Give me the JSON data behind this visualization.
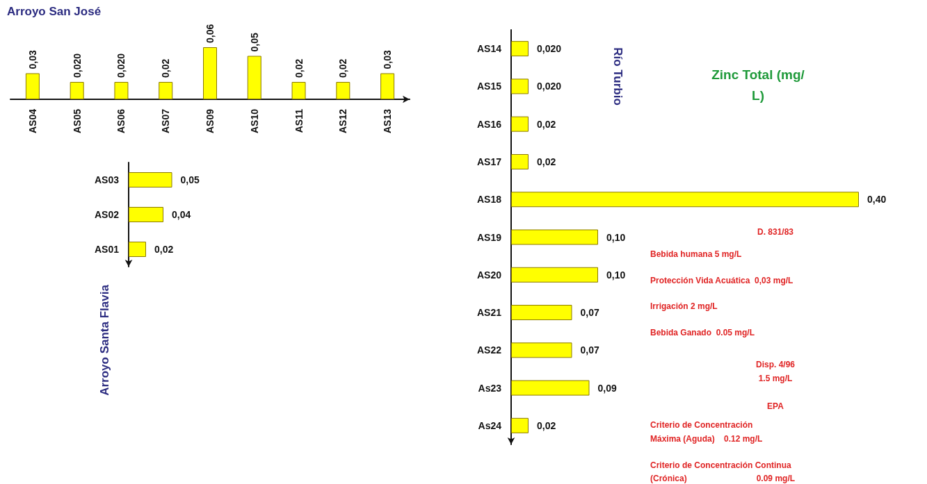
{
  "chart_data": [
    {
      "type": "bar",
      "title": "Arroyo San José",
      "categories": [
        "AS04",
        "AS05",
        "AS06",
        "AS07",
        "AS09",
        "AS10",
        "AS11",
        "AS12",
        "AS13"
      ],
      "values": [
        0.03,
        0.02,
        0.02,
        0.02,
        0.06,
        0.05,
        0.02,
        0.02,
        0.03
      ],
      "value_labels": [
        "0,03",
        "0,020",
        "0,020",
        "0,02",
        "0,06",
        "0,05",
        "0,02",
        "0,02",
        "0,03"
      ],
      "color": "#ffff00"
    },
    {
      "type": "bar",
      "orientation": "horizontal",
      "title": "Arroyo Santa Flavia",
      "categories": [
        "AS03",
        "AS02",
        "AS01"
      ],
      "values": [
        0.05,
        0.04,
        0.02
      ],
      "value_labels": [
        "0,05",
        "0,04",
        "0,02"
      ],
      "color": "#ffff00"
    },
    {
      "type": "bar",
      "orientation": "horizontal",
      "title": "Río Turbio",
      "subtitle": "Zinc Total (mg/L)",
      "categories": [
        "AS14",
        "AS15",
        "AS16",
        "AS17",
        "AS18",
        "AS19",
        "AS20",
        "AS21",
        "AS22",
        "As23",
        "As24"
      ],
      "values": [
        0.02,
        0.02,
        0.02,
        0.02,
        0.4,
        0.1,
        0.1,
        0.07,
        0.07,
        0.09,
        0.02
      ],
      "value_labels": [
        "0,020",
        "0,020",
        "0,02",
        "0,02",
        "0,40",
        "0,10",
        "0,10",
        "0,07",
        "0,07",
        "0,09",
        "0,02"
      ],
      "color": "#ffff00",
      "annotations": [
        "D. 831/83",
        "Bebida humana 5 mg/L",
        "Protección Vida Acuática  0,03 mg/L",
        "Irrigación 2 mg/L",
        "Bebida Ganado  0.05 mg/L",
        "Disp. 4/96",
        "1.5 mg/L",
        "EPA",
        "Criterio de Concentración",
        "Máxima (Aguda)    0.12 mg/L",
        "Criterio de Concentración Continua",
        "(Crónica)                              0.09 mg/L"
      ]
    }
  ]
}
